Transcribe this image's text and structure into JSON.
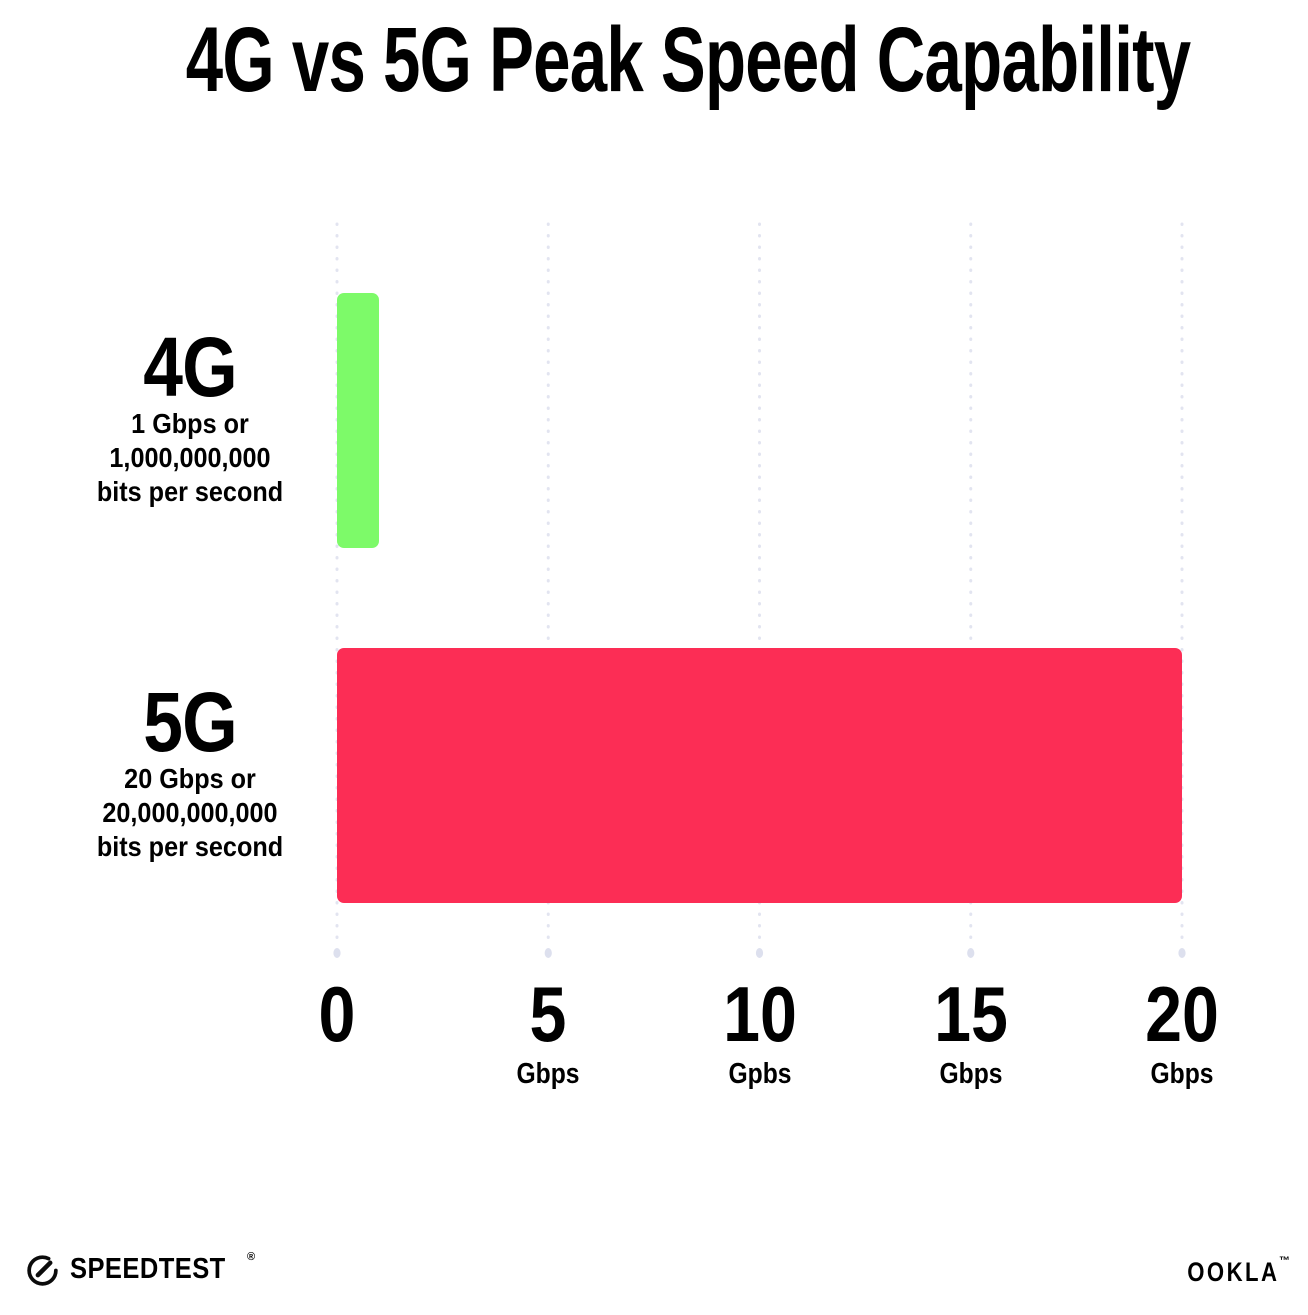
{
  "title": "4G vs 5G Peak Speed Capability",
  "colors": {
    "bar_4g": "#7DFA69",
    "bar_5g": "#FC2D55",
    "gridline": "#E2E4F0",
    "gridline_end_dot": "#DDE0EE",
    "text": "#000000",
    "background": "#FFFFFF"
  },
  "chart_data": {
    "type": "bar",
    "orientation": "horizontal",
    "title": "4G vs 5G Peak Speed Capability",
    "categories": [
      "4G",
      "5G"
    ],
    "values": [
      1,
      20
    ],
    "value_unit": "Gbps",
    "xlim": [
      0,
      20
    ],
    "grid": "vertical-dotted",
    "legend": "none",
    "bars": [
      {
        "label": "4G",
        "value_gbps": 1,
        "color": "#7DFA69",
        "sublabel_lines": [
          "1 Gbps or",
          "1,000,000,000",
          "bits per second"
        ]
      },
      {
        "label": "5G",
        "value_gbps": 20,
        "color": "#FC2D55",
        "sublabel_lines": [
          "20 Gbps or",
          "20,000,000,000",
          "bits per second"
        ]
      }
    ],
    "x_ticks": [
      {
        "value": 0,
        "label": "0",
        "unit": ""
      },
      {
        "value": 5,
        "label": "5",
        "unit": "Gbps"
      },
      {
        "value": 10,
        "label": "10",
        "unit": "Gpbs"
      },
      {
        "value": 15,
        "label": "15",
        "unit": "Gbps"
      },
      {
        "value": 20,
        "label": "20",
        "unit": "Gbps"
      }
    ]
  },
  "footer": {
    "speedtest_label": "SPEEDTEST",
    "speedtest_trademark": "®",
    "speedtest_icon": "gauge-icon",
    "ookla_label": "OOKLA",
    "ookla_trademark": "™"
  }
}
